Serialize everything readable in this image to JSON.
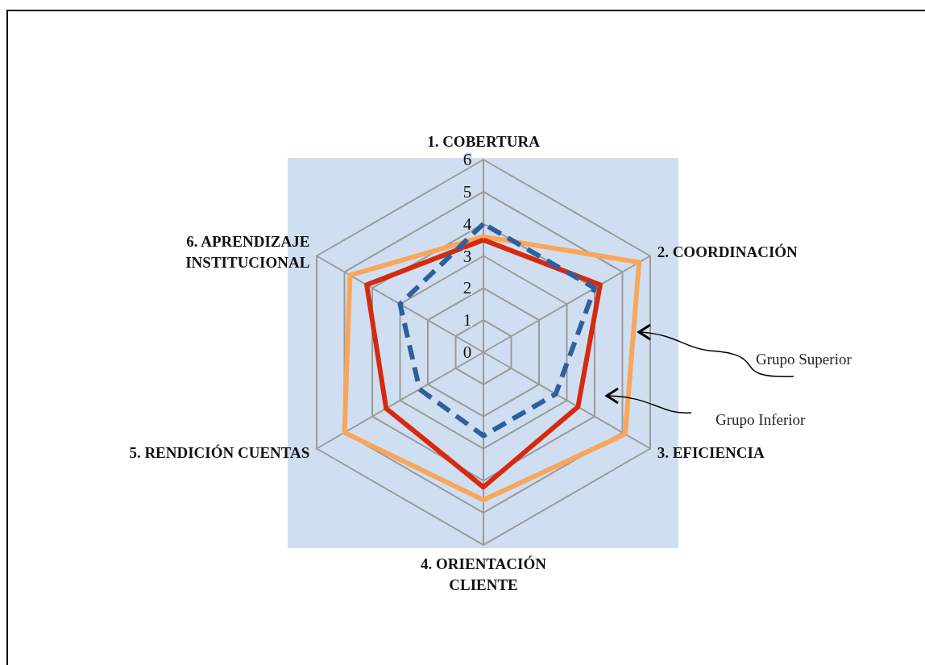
{
  "chart_data": {
    "type": "radar",
    "categories": [
      "1. COBERTURA",
      "2. COORDINACIÓN",
      "3. EFICIENCIA",
      "4. ORIENTACIÓN\nCLIENTE",
      "5. RENDICIÓN CUENTAS",
      "6. APRENDIZAJE\nINSTITUCIONAL"
    ],
    "series": [
      {
        "name": "Grupo Superior",
        "color": "#f9a65a",
        "values": [
          3.6,
          5.6,
          5.1,
          4.6,
          5.0,
          4.8
        ]
      },
      {
        "name": "Grupo Inferior",
        "color": "#d62a0e",
        "values": [
          3.5,
          4.2,
          3.4,
          4.2,
          3.5,
          4.2
        ]
      },
      {
        "color": "#2e5f9e",
        "line_style": "dashed",
        "values": [
          4.0,
          4.0,
          2.6,
          2.6,
          2.3,
          3.0
        ]
      }
    ],
    "ylim": [
      0,
      6
    ],
    "yticks": [
      0,
      1,
      2,
      3,
      4,
      5,
      6
    ],
    "grid": true,
    "legend": false,
    "marker": "none"
  }
}
